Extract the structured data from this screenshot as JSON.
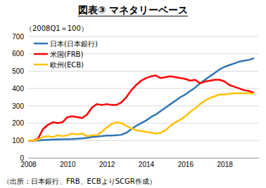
{
  "chart_data": {
    "type": "line",
    "title": "図表③ マネタリーベース",
    "subtitle": "（2008Q1＝100）",
    "source": "（出所：日本銀行、FRB、ECBよりSCGR作成）",
    "x": [
      2008,
      2008.25,
      2008.5,
      2008.75,
      2009,
      2009.25,
      2009.5,
      2009.75,
      2010,
      2010.25,
      2010.5,
      2010.75,
      2011,
      2011.25,
      2011.5,
      2011.75,
      2012,
      2012.25,
      2012.5,
      2012.75,
      2013,
      2013.25,
      2013.5,
      2013.75,
      2014,
      2014.25,
      2014.5,
      2014.75,
      2015,
      2015.25,
      2015.5,
      2015.75,
      2016,
      2016.25,
      2016.5,
      2016.75,
      2017,
      2017.25,
      2017.5,
      2017.75,
      2018,
      2018.25,
      2018.5,
      2018.75,
      2019,
      2019.25,
      2019.5
    ],
    "series": [
      {
        "name": "日本(日本銀行)",
        "color": "#2e75b6",
        "values": [
          100,
          100,
          100,
          102,
          104,
          105,
          106,
          107,
          107,
          108,
          110,
          112,
          115,
          120,
          122,
          125,
          128,
          128,
          130,
          133,
          145,
          165,
          185,
          200,
          215,
          235,
          250,
          270,
          290,
          310,
          330,
          350,
          365,
          385,
          405,
          430,
          450,
          470,
          490,
          510,
          525,
          535,
          545,
          555,
          560,
          565,
          575
        ]
      },
      {
        "name": "米国(FRB)",
        "color": "#ff0000",
        "values": [
          100,
          100,
          110,
          165,
          190,
          205,
          200,
          205,
          235,
          240,
          235,
          230,
          250,
          290,
          310,
          305,
          310,
          305,
          305,
          320,
          350,
          390,
          420,
          445,
          460,
          470,
          475,
          460,
          465,
          470,
          465,
          460,
          455,
          445,
          450,
          430,
          440,
          445,
          450,
          450,
          440,
          420,
          410,
          400,
          390,
          385,
          375
        ]
      },
      {
        "name": "欧州(ECB)",
        "color": "#ffc000",
        "values": [
          100,
          100,
          105,
          120,
          125,
          120,
          130,
          125,
          130,
          140,
          135,
          140,
          125,
          130,
          130,
          150,
          175,
          195,
          205,
          200,
          185,
          170,
          160,
          155,
          150,
          145,
          140,
          145,
          160,
          185,
          205,
          220,
          240,
          265,
          285,
          310,
          330,
          345,
          355,
          365,
          365,
          370,
          372,
          372,
          372,
          372,
          370
        ]
      }
    ],
    "xlim": [
      2008,
      2019.75
    ],
    "xticks": [
      2008,
      2010,
      2012,
      2014,
      2016,
      2018
    ],
    "ylim": [
      0,
      700
    ],
    "yticks": [
      0,
      100,
      200,
      300,
      400,
      500,
      600,
      700
    ],
    "grid": true,
    "legend": "upper left"
  }
}
